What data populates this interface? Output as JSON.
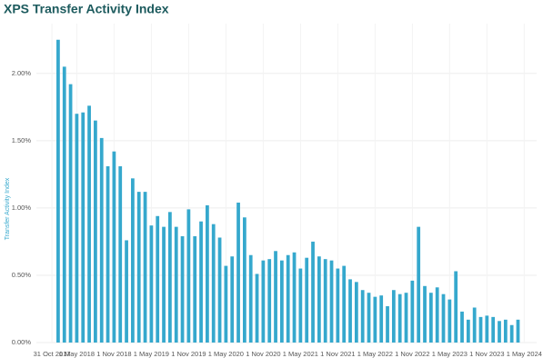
{
  "chart_data": {
    "type": "bar",
    "title": "XPS Transfer Activity Index",
    "y_label": "Transfer Activity Index",
    "color": "#35a8cd",
    "grid": true,
    "values": [
      2.25,
      2.05,
      1.92,
      1.7,
      1.71,
      1.76,
      1.65,
      1.52,
      1.31,
      1.42,
      1.31,
      0.76,
      1.22,
      1.12,
      1.12,
      0.87,
      0.94,
      0.86,
      0.97,
      0.86,
      0.79,
      0.99,
      0.79,
      0.9,
      1.02,
      0.88,
      0.78,
      0.57,
      0.64,
      1.04,
      0.93,
      0.65,
      0.51,
      0.61,
      0.62,
      0.68,
      0.61,
      0.65,
      0.67,
      0.55,
      0.63,
      0.75,
      0.64,
      0.62,
      0.61,
      0.55,
      0.57,
      0.47,
      0.45,
      0.39,
      0.37,
      0.34,
      0.35,
      0.27,
      0.39,
      0.36,
      0.37,
      0.46,
      0.86,
      0.42,
      0.37,
      0.41,
      0.36,
      0.32,
      0.53,
      0.23,
      0.17,
      0.26,
      0.19,
      0.2,
      0.19,
      0.16,
      0.17,
      0.13,
      0.17
    ],
    "xlim": [
      -3.5,
      77
    ],
    "xticks": [
      {
        "value": -1,
        "label": "31 Oct 2017"
      },
      {
        "value": 3,
        "label": "1 May 2018"
      },
      {
        "value": 9,
        "label": "1 Nov 2018"
      },
      {
        "value": 15,
        "label": "1 May 2019"
      },
      {
        "value": 21,
        "label": "1 Nov 2019"
      },
      {
        "value": 27,
        "label": "1 May 2020"
      },
      {
        "value": 33,
        "label": "1 Nov 2020"
      },
      {
        "value": 39,
        "label": "1 May 2021"
      },
      {
        "value": 45,
        "label": "1 Nov 2021"
      },
      {
        "value": 51,
        "label": "1 May 2022"
      },
      {
        "value": 57,
        "label": "1 Nov 2022"
      },
      {
        "value": 63,
        "label": "1 May 2023"
      },
      {
        "value": 69,
        "label": "1 Nov 2023"
      },
      {
        "value": 75,
        "label": "1 May 2024"
      }
    ],
    "ylim": [
      0,
      2.37
    ],
    "yticks": [
      {
        "value": 0,
        "label": "0.00%"
      },
      {
        "value": 0.5,
        "label": "0.50%"
      },
      {
        "value": 1,
        "label": "1.00%"
      },
      {
        "value": 1.5,
        "label": "1.50%"
      },
      {
        "value": 2,
        "label": "2.00%"
      }
    ]
  }
}
